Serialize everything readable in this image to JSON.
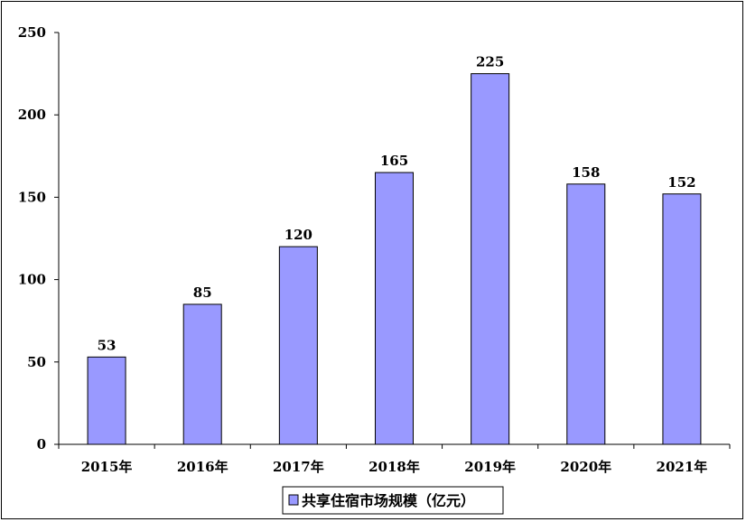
{
  "chart_data": {
    "type": "bar",
    "categories": [
      "2015年",
      "2016年",
      "2017年",
      "2018年",
      "2019年",
      "2020年",
      "2021年"
    ],
    "series": [
      {
        "name": "共享住宿市场规模（亿元）",
        "values": [
          53,
          85,
          120,
          165,
          225,
          158,
          152
        ]
      }
    ],
    "ylim": [
      0,
      250
    ],
    "yticks": [
      0,
      50,
      100,
      150,
      200,
      250
    ],
    "data_labels": true,
    "legend_position": "bottom",
    "grid": false,
    "colors": {
      "bar": "#9999ff",
      "bar_stroke": "#000000",
      "axis": "#000000"
    }
  }
}
